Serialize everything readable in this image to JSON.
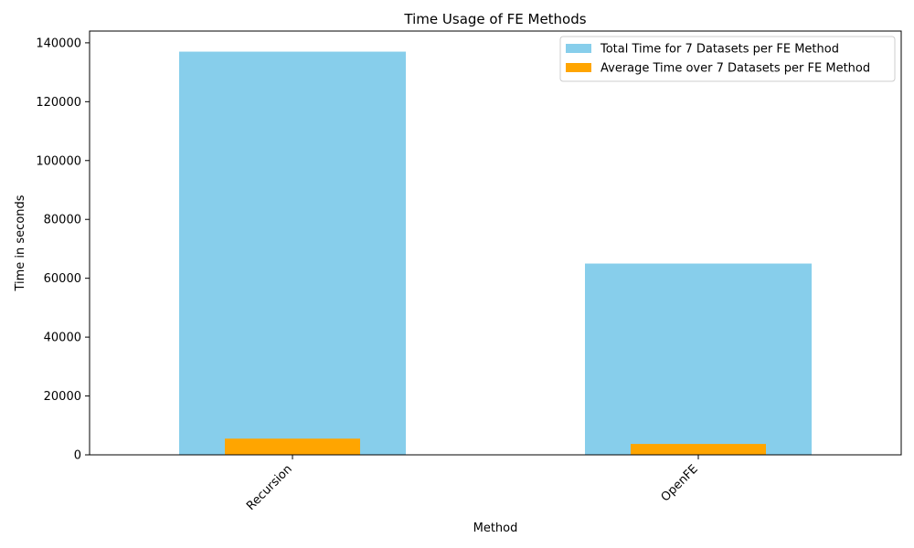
{
  "chart_data": {
    "type": "bar",
    "title": "Time Usage of FE Methods",
    "xlabel": "Method",
    "ylabel": "Time in seconds",
    "categories": [
      "Recursion",
      "OpenFE"
    ],
    "series": [
      {
        "name": "Total Time for 7 Datasets per FE Method",
        "values": [
          137000,
          65000
        ],
        "color": "#87ceeb"
      },
      {
        "name": "Average Time over 7 Datasets per FE Method",
        "values": [
          5500,
          3700
        ],
        "color": "#ffa500"
      }
    ],
    "ylim": [
      0,
      144000
    ],
    "yticks": [
      0,
      20000,
      40000,
      60000,
      80000,
      100000,
      120000,
      140000
    ],
    "ytick_labels": [
      "0",
      "20000",
      "40000",
      "60000",
      "80000",
      "100000",
      "120000",
      "140000"
    ],
    "grid": false,
    "legend_position": "top-right",
    "x_tick_rotation_deg": 45
  }
}
